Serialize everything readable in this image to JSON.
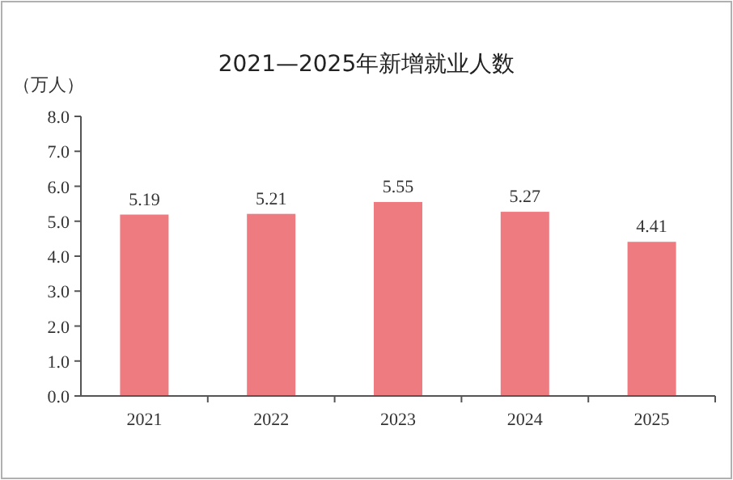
{
  "chart_data": {
    "type": "bar",
    "title": "2021—2025年新增就业人数",
    "ylabel": "（万人）",
    "categories": [
      "2021",
      "2022",
      "2023",
      "2024",
      "2025"
    ],
    "values": [
      5.19,
      5.21,
      5.55,
      5.27,
      4.41
    ],
    "color": "#ee7b80",
    "ylim": [
      0,
      8
    ],
    "yticks": [
      {
        "value": 0,
        "label": "0.0"
      },
      {
        "value": 1,
        "label": "1.0"
      },
      {
        "value": 2,
        "label": "2.0"
      },
      {
        "value": 3,
        "label": "3.0"
      },
      {
        "value": 4,
        "label": "4.0"
      },
      {
        "value": 5,
        "label": "5.0"
      },
      {
        "value": 6,
        "label": "6.0"
      },
      {
        "value": 7,
        "label": "7.0"
      },
      {
        "value": 8,
        "label": "8.0"
      }
    ],
    "data_labels": true
  }
}
